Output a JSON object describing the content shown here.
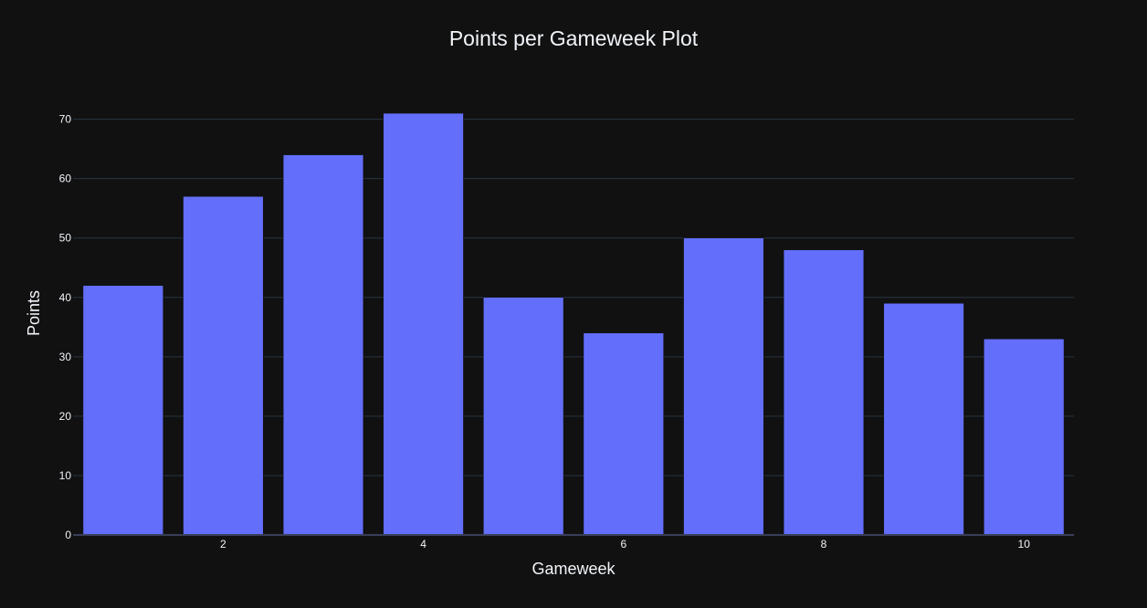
{
  "chart_data": {
    "type": "bar",
    "title": "Points per Gameweek Plot",
    "xlabel": "Gameweek",
    "ylabel": "Points",
    "x": [
      1,
      2,
      3,
      4,
      5,
      6,
      7,
      8,
      9,
      10
    ],
    "values": [
      42,
      57,
      64,
      71,
      40,
      34,
      50,
      48,
      39,
      33
    ],
    "x_ticks": [
      2,
      4,
      6,
      8,
      10
    ],
    "y_ticks": [
      0,
      10,
      20,
      30,
      40,
      50,
      60,
      70
    ],
    "ylim": [
      0,
      74.7
    ],
    "xlim": [
      0.5,
      10.5
    ],
    "grid": true,
    "legend": "none",
    "colors": {
      "background": "#111111",
      "bar": "#636efa",
      "grid": "#283442",
      "text": "#f2f5fa"
    }
  }
}
